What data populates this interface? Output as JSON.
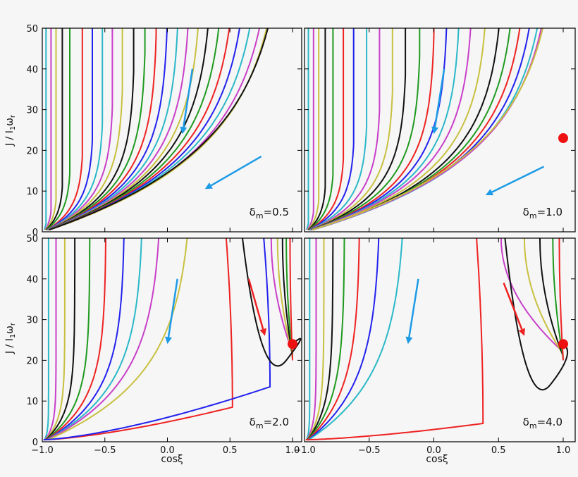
{
  "chart_data": {
    "type": "line",
    "xlabel": "cosξ",
    "ylabel": "J / I₁ω_r",
    "ylabel_parts": {
      "main": "J / I",
      "sub1": "1",
      "omega": "ω",
      "subr": "r"
    },
    "xlim": [
      -1.0,
      1.0
    ],
    "ylim": [
      0,
      50
    ],
    "x_ticks": [
      -1.0,
      -0.5,
      0.0,
      0.5,
      1.0
    ],
    "x_tick_labels": [
      "−1.0",
      "−0.5",
      "0.0",
      "0.5",
      "1.0"
    ],
    "y_ticks": [
      0,
      10,
      20,
      30,
      40,
      50
    ],
    "y_tick_labels": [
      "0",
      "10",
      "20",
      "30",
      "40",
      "50"
    ],
    "grid": false,
    "line_colors": [
      "#2ab8c8",
      "#c840c8",
      "#c8c040",
      "#111111",
      "#1f9a1f",
      "#ee2222",
      "#2222ee"
    ],
    "arrow_colors": {
      "blue": "#1e9be6",
      "red": "#ee2222"
    },
    "panels": [
      {
        "label_delta": "δ",
        "label_sub": "m",
        "label_value": "=0.5",
        "flow_kind": "single-basin",
        "x_at_y50": [
          -0.97,
          -0.93,
          -0.89,
          -0.84,
          -0.78,
          -0.68,
          -0.6,
          -0.52,
          -0.44,
          -0.36,
          -0.27,
          -0.18,
          -0.09,
          0.0,
          0.09,
          0.18,
          0.27,
          0.36,
          0.46,
          0.56,
          0.66,
          0.76,
          0.86,
          0.94,
          0.97
        ],
        "separatrix_y_at_x1": 25,
        "fixed_point": null,
        "arrows": [
          {
            "color": "blue",
            "from": [
              0.2,
              40
            ],
            "to": [
              0.12,
              24
            ]
          },
          {
            "color": "blue",
            "from": [
              0.75,
              18.5
            ],
            "to": [
              0.3,
              10.5
            ]
          }
        ]
      },
      {
        "label_delta": "δ",
        "label_sub": "m",
        "label_value": "=1.0",
        "flow_kind": "single-basin",
        "x_at_y50": [
          -0.97,
          -0.93,
          -0.89,
          -0.84,
          -0.78,
          -0.7,
          -0.62,
          -0.52,
          -0.42,
          -0.32,
          -0.22,
          -0.11,
          0.0,
          0.1,
          0.2,
          0.3,
          0.42,
          0.54,
          0.64,
          0.73,
          0.82,
          0.9,
          0.95,
          0.98
        ],
        "separatrix_y_at_x1": 23,
        "fixed_point": [
          1.0,
          23
        ],
        "arrows": [
          {
            "color": "blue",
            "from": [
              0.08,
              40
            ],
            "to": [
              0.0,
              24
            ]
          },
          {
            "color": "blue",
            "from": [
              0.85,
              16
            ],
            "to": [
              0.4,
              9
            ]
          }
        ]
      },
      {
        "label_delta": "δ",
        "label_sub": "m",
        "label_value": "=2.0",
        "flow_kind": "two-basin",
        "x_at_y50": [
          -0.96,
          -0.9,
          -0.83,
          -0.75,
          -0.63,
          -0.5,
          -0.35,
          -0.2,
          -0.05,
          0.2
        ],
        "turn_x": [
          0.52,
          0.82
        ],
        "turn_y": [
          8,
          13
        ],
        "right_x_at_y50": [
          0.83,
          0.88,
          0.92,
          0.95,
          0.98
        ],
        "right_turn": [
          0.95,
          20
        ],
        "fixed_point": [
          1.0,
          24
        ],
        "arrows": [
          {
            "color": "blue",
            "from": [
              0.08,
              40
            ],
            "to": [
              0.0,
              24
            ]
          },
          {
            "color": "red",
            "from": [
              0.65,
              40
            ],
            "to": [
              0.78,
              26
            ]
          }
        ]
      },
      {
        "label_delta": "δ",
        "label_sub": "m",
        "label_value": "=4.0",
        "flow_kind": "two-basin",
        "x_at_y50": [
          -0.97,
          -0.92,
          -0.86,
          -0.79,
          -0.7,
          -0.58,
          -0.42,
          -0.22
        ],
        "turn_x": [
          0.38
        ],
        "turn_y": [
          4
        ],
        "right_x_at_y50": [
          0.52,
          0.7,
          0.82,
          0.92,
          0.97
        ],
        "right_turn": [
          0.9,
          14
        ],
        "fixed_point": [
          1.0,
          24
        ],
        "arrows": [
          {
            "color": "blue",
            "from": [
              -0.12,
              40
            ],
            "to": [
              -0.2,
              24
            ]
          },
          {
            "color": "red",
            "from": [
              0.54,
              39
            ],
            "to": [
              0.7,
              26
            ]
          }
        ]
      }
    ]
  }
}
